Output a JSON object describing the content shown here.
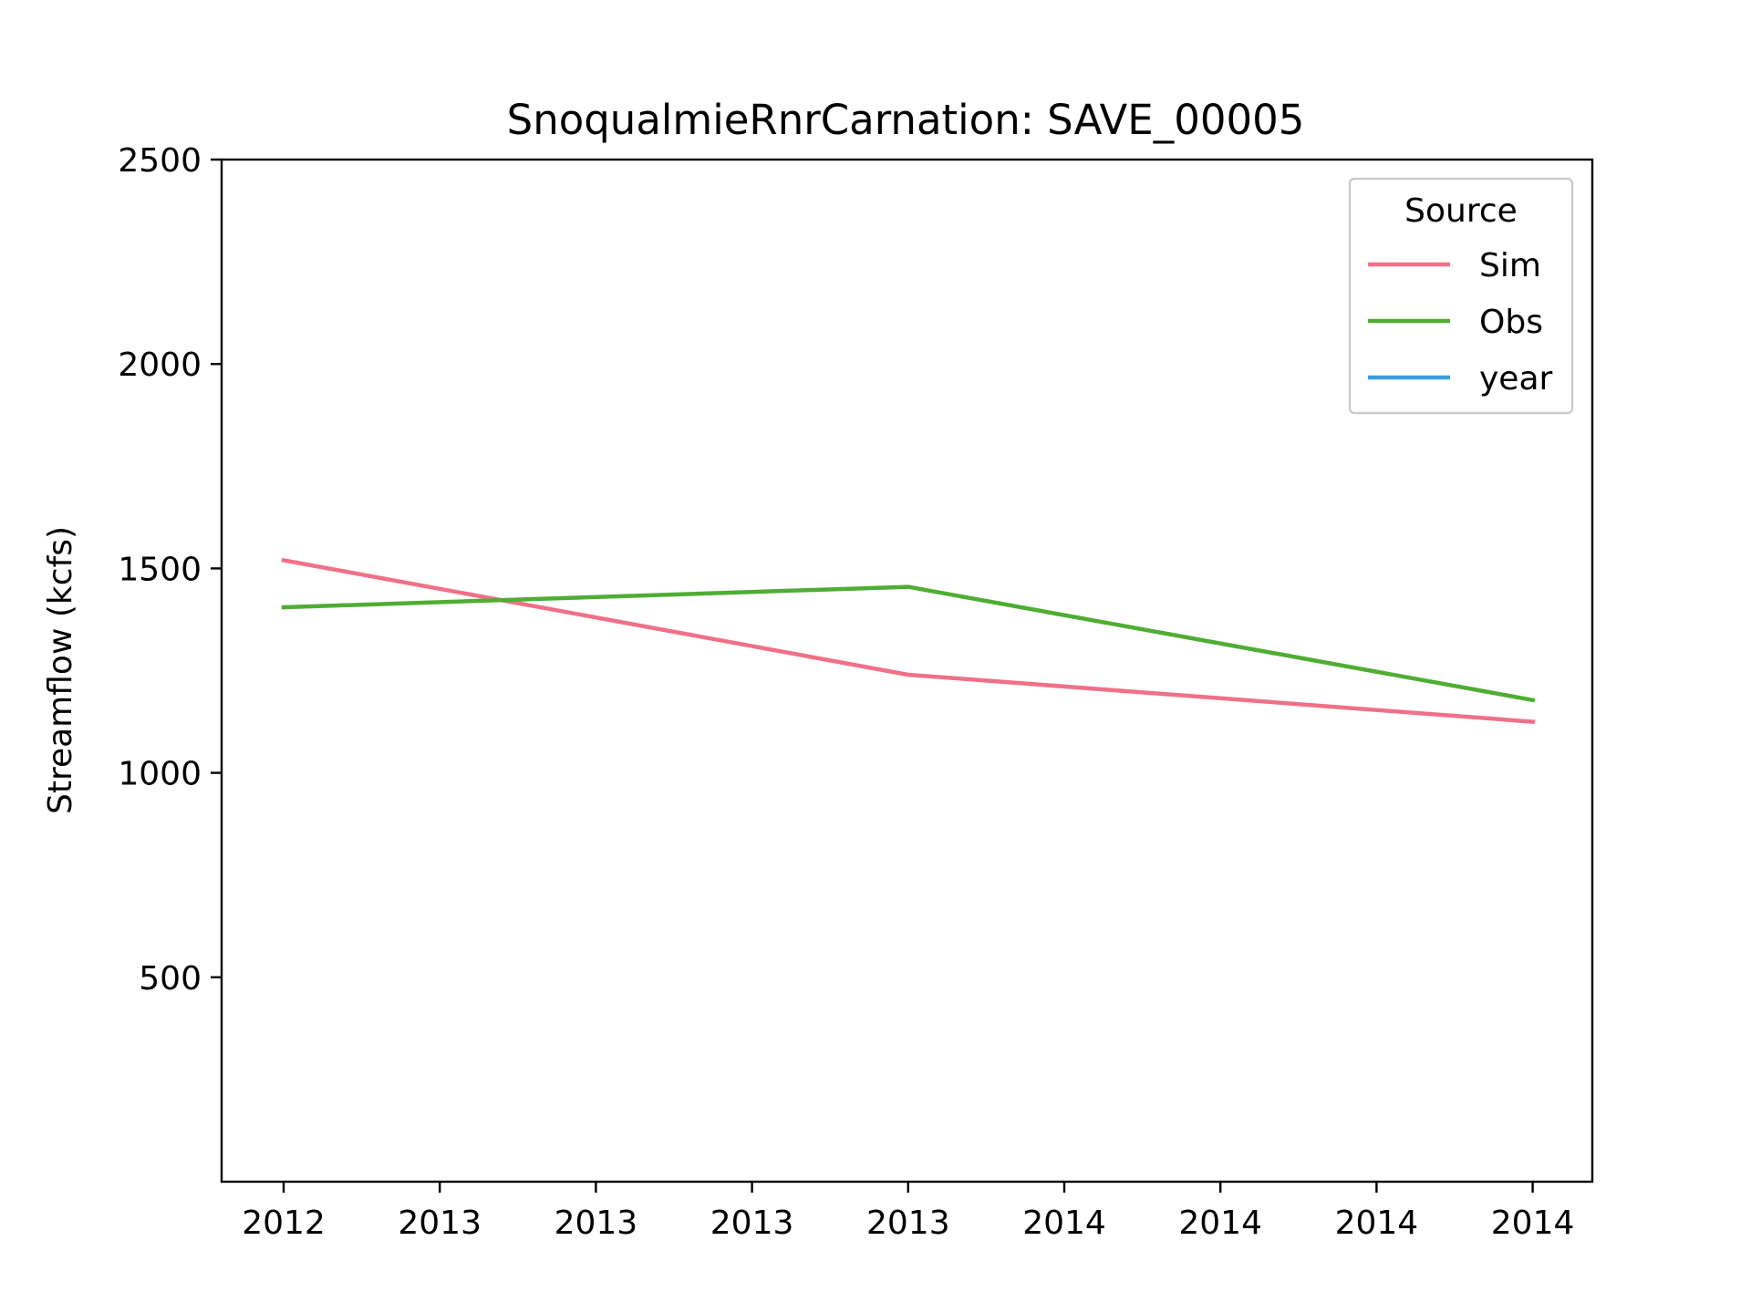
{
  "chart_data": {
    "type": "line",
    "title": "SnoqualmieRnrCarnation: SAVE_00005",
    "xlabel": "",
    "ylabel": "Streamflow (kcfs)",
    "x_tick_labels": [
      "2012",
      "2013",
      "2013",
      "2013",
      "2013",
      "2014",
      "2014",
      "2014",
      "2014"
    ],
    "y_ticks": [
      500,
      1000,
      1500,
      2000,
      2500
    ],
    "ylim": [
      0,
      2500
    ],
    "grid": false,
    "legend": {
      "title": "Source",
      "placement": "top-right",
      "entries": [
        "Sim",
        "Obs",
        "year"
      ]
    },
    "series": [
      {
        "name": "Sim",
        "color": "#f07088",
        "x_index": [
          0,
          4,
          8
        ],
        "values": [
          1520,
          1240,
          1125
        ]
      },
      {
        "name": "Obs",
        "color": "#4fad33",
        "x_index": [
          0,
          4,
          8
        ],
        "values": [
          1405,
          1455,
          1178
        ]
      },
      {
        "name": "year",
        "color": "#3b9ee2",
        "x_index": [],
        "values": []
      }
    ]
  }
}
